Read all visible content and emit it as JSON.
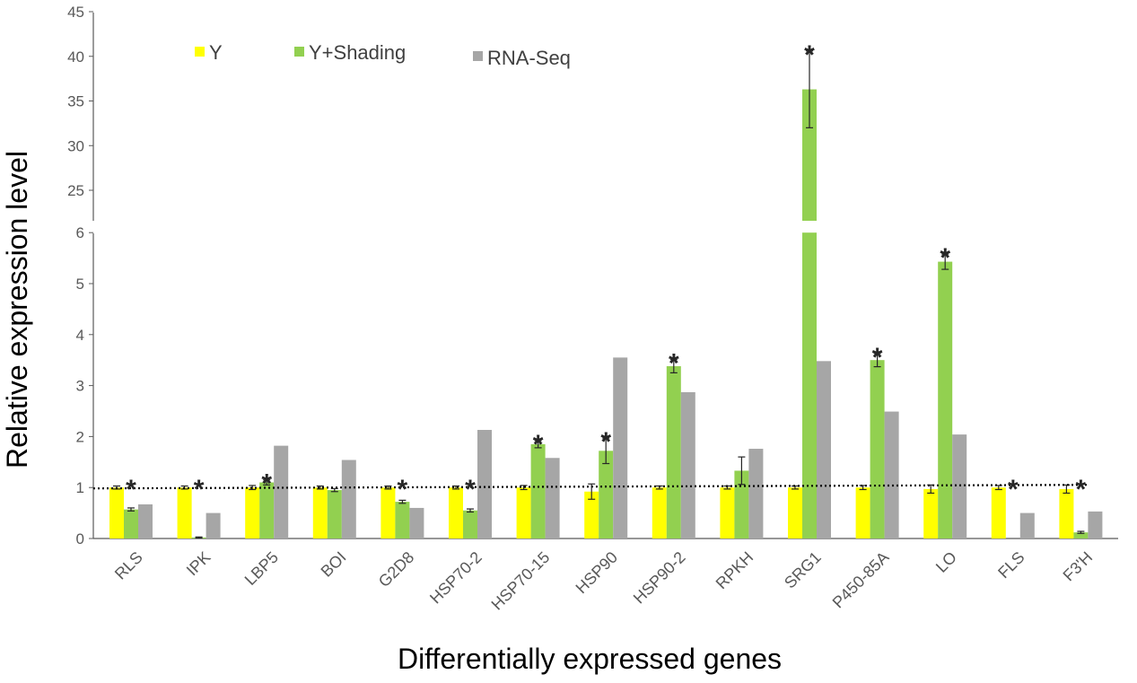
{
  "chart_data": {
    "type": "bar",
    "title": "",
    "xlabel": "Differentially expressed genes",
    "ylabel": "Relative expression level",
    "categories": [
      "RLS",
      "IPK",
      "LBP5",
      "BOI",
      "G2D8",
      "HSP70-2",
      "HSP70-15",
      "HSP90",
      "HSP90-2",
      "RPKH",
      "SRG1",
      "P450-85A",
      "LO",
      "FLS",
      "F3'H"
    ],
    "series": [
      {
        "name": "Y",
        "color": "#FFFF00",
        "values": [
          1.0,
          1.0,
          1.0,
          1.0,
          1.0,
          1.0,
          1.0,
          0.92,
          1.0,
          1.0,
          1.0,
          1.0,
          0.97,
          1.0,
          0.97
        ],
        "errors": [
          0.03,
          0.03,
          0.04,
          0.03,
          0.03,
          0.03,
          0.04,
          0.15,
          0.03,
          0.03,
          0.03,
          0.04,
          0.08,
          0.04,
          0.08
        ]
      },
      {
        "name": "Y+Shading",
        "color": "#92D050",
        "values": [
          0.57,
          0.02,
          1.1,
          0.95,
          0.72,
          0.55,
          1.85,
          1.72,
          3.38,
          1.33,
          36.3,
          3.5,
          5.43,
          0.0,
          0.12
        ],
        "errors": [
          0.03,
          0.01,
          0.05,
          0.03,
          0.03,
          0.03,
          0.07,
          0.25,
          0.13,
          0.27,
          4.3,
          0.13,
          0.15,
          0.0,
          0.02
        ]
      },
      {
        "name": "RNA-Seq",
        "color": "#A6A6A6",
        "values": [
          0.67,
          0.5,
          1.82,
          1.54,
          0.6,
          2.13,
          1.58,
          3.55,
          2.87,
          1.76,
          3.48,
          2.49,
          2.04,
          0.5,
          0.53
        ]
      }
    ],
    "significant": [
      true,
      true,
      true,
      false,
      true,
      true,
      true,
      true,
      true,
      false,
      true,
      true,
      true,
      true,
      true
    ],
    "significance_marker": "*",
    "reference_line": 1.0,
    "ylim_lower": [
      0,
      6
    ],
    "ylim_upper": [
      20,
      45
    ],
    "axis_break": true,
    "yticks_lower": [
      "0",
      "1",
      "2",
      "3",
      "4",
      "5",
      "6"
    ],
    "yticks_upper": [
      "25",
      "30",
      "35",
      "40",
      "45"
    ],
    "legend": {
      "position": "top-left",
      "entries": [
        "Y",
        "Y+Shading",
        "RNA-Seq"
      ]
    }
  }
}
